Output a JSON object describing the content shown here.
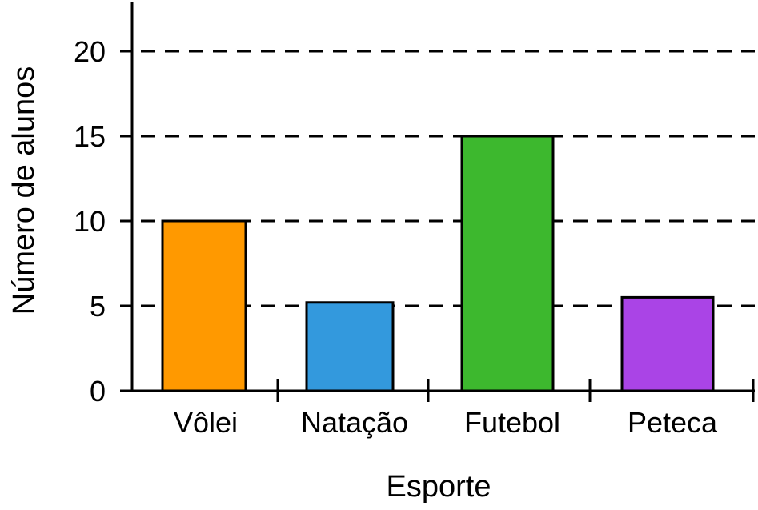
{
  "chart_data": {
    "type": "bar",
    "categories": [
      "Vôlei",
      "Natação",
      "Futebol",
      "Peteca"
    ],
    "values": [
      10,
      5.2,
      15,
      5.5
    ],
    "colors": [
      "#FF9900",
      "#3399DD",
      "#3DB82E",
      "#AA44E6"
    ],
    "xlabel": "Esporte",
    "ylabel": "Número de alunos",
    "yticks": [
      "0",
      "5",
      "10",
      "15",
      "20"
    ],
    "ylim": [
      0,
      23
    ],
    "grid": "dashed horizontal"
  }
}
